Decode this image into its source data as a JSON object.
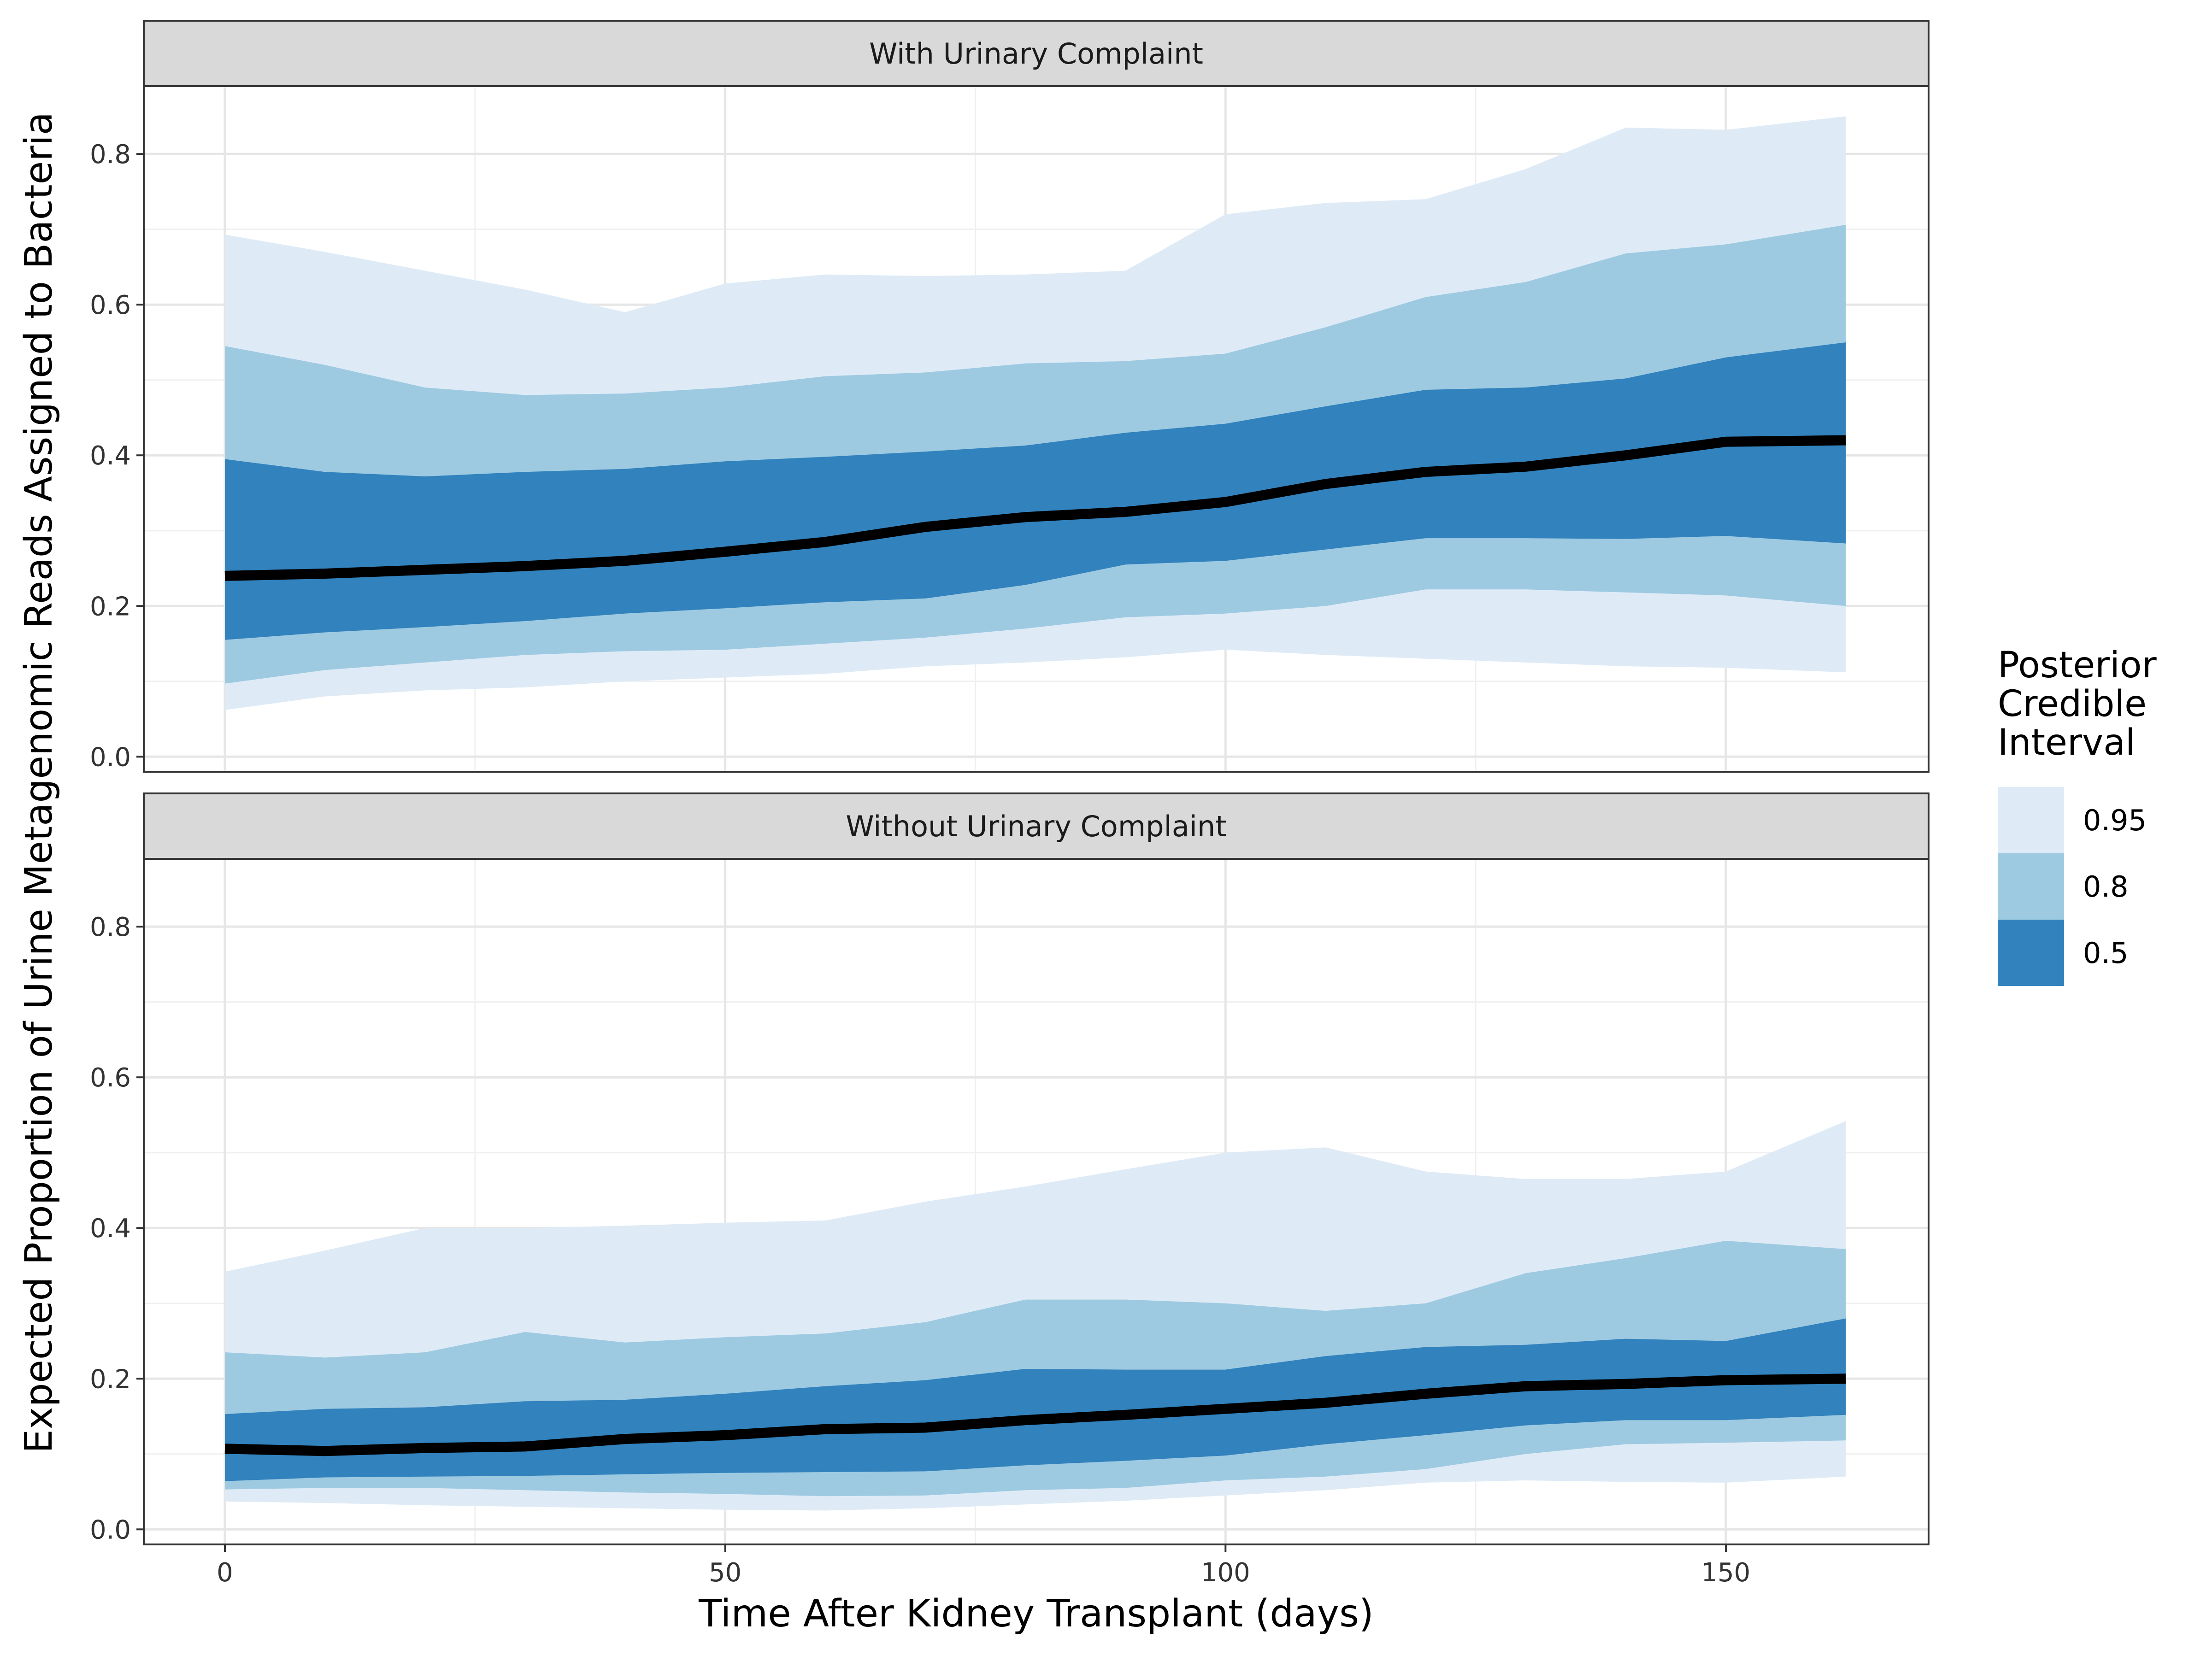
{
  "chart_data": {
    "type": "area",
    "xlabel": "Time After Kidney Transplant (days)",
    "ylabel": "Expected Proportion of Urine Metagenomic Reads Assigned to Bacteria",
    "xlim": [
      -16,
      340
    ],
    "ylim": [
      -0.02,
      0.89
    ],
    "x_ticks": [
      0,
      50,
      100,
      150
    ],
    "y_ticks": [
      0.0,
      0.2,
      0.4,
      0.6,
      0.8
    ],
    "x_tick_labels": [
      "0",
      "50",
      "100",
      "150"
    ],
    "y_tick_labels": [
      "0.0",
      "0.2",
      "0.4",
      "0.6",
      "0.8"
    ],
    "grid": true,
    "legend": {
      "title": [
        "Posterior",
        "Credible",
        "Interval"
      ],
      "position": "right",
      "entries": [
        {
          "label": "0.95",
          "color": "#deebf7"
        },
        {
          "label": "0.8",
          "color": "#9ecae1"
        },
        {
          "label": "0.5",
          "color": "#3182bd"
        }
      ]
    },
    "median_color": "#000000",
    "panels": [
      {
        "strip": "With Urinary Complaint",
        "x": [
          0,
          10,
          20,
          30,
          40,
          50,
          60,
          70,
          80,
          90,
          100,
          110,
          120,
          130,
          140,
          150,
          162
        ],
        "median": [
          0.24,
          0.243,
          0.248,
          0.253,
          0.26,
          0.272,
          0.285,
          0.305,
          0.318,
          0.325,
          0.338,
          0.362,
          0.378,
          0.385,
          0.4,
          0.418,
          0.42
        ],
        "bands": [
          {
            "level": "0.95",
            "lower": [
              0.062,
              0.08,
              0.088,
              0.092,
              0.1,
              0.105,
              0.11,
              0.12,
              0.125,
              0.132,
              0.142,
              0.135,
              0.13,
              0.125,
              0.12,
              0.118,
              0.112
            ],
            "upper": [
              0.693,
              0.67,
              0.645,
              0.62,
              0.59,
              0.628,
              0.64,
              0.638,
              0.64,
              0.645,
              0.72,
              0.735,
              0.74,
              0.78,
              0.835,
              0.832,
              0.85
            ]
          },
          {
            "level": "0.8",
            "lower": [
              0.097,
              0.115,
              0.125,
              0.135,
              0.14,
              0.142,
              0.15,
              0.158,
              0.17,
              0.185,
              0.19,
              0.2,
              0.222,
              0.222,
              0.218,
              0.214,
              0.2
            ],
            "upper": [
              0.545,
              0.52,
              0.49,
              0.48,
              0.482,
              0.49,
              0.505,
              0.51,
              0.522,
              0.525,
              0.535,
              0.57,
              0.61,
              0.63,
              0.668,
              0.68,
              0.706
            ]
          },
          {
            "level": "0.5",
            "lower": [
              0.155,
              0.165,
              0.172,
              0.18,
              0.19,
              0.197,
              0.205,
              0.21,
              0.228,
              0.255,
              0.26,
              0.275,
              0.29,
              0.29,
              0.289,
              0.293,
              0.283
            ]
          },
          {
            "level": "0.5-upper-placeholder"
          }
        ],
        "upper50": [
          0.395,
          0.378,
          0.372,
          0.378,
          0.382,
          0.392,
          0.398,
          0.405,
          0.413,
          0.43,
          0.442,
          0.465,
          0.487,
          0.49,
          0.502,
          0.53,
          0.55
        ]
      },
      {
        "strip": "Without Urinary Complaint",
        "x": [
          0,
          10,
          20,
          30,
          40,
          50,
          60,
          70,
          80,
          90,
          100,
          110,
          120,
          130,
          140,
          150,
          162
        ],
        "median": [
          0.107,
          0.104,
          0.108,
          0.11,
          0.12,
          0.125,
          0.133,
          0.135,
          0.145,
          0.152,
          0.16,
          0.168,
          0.18,
          0.19,
          0.193,
          0.198,
          0.2
        ],
        "bands": [
          {
            "level": "0.95",
            "lower": [
              0.037,
              0.035,
              0.032,
              0.03,
              0.028,
              0.026,
              0.025,
              0.028,
              0.033,
              0.038,
              0.045,
              0.052,
              0.062,
              0.065,
              0.063,
              0.062,
              0.07
            ],
            "upper": [
              0.342,
              0.37,
              0.4,
              0.4,
              0.403,
              0.407,
              0.41,
              0.435,
              0.455,
              0.478,
              0.5,
              0.507,
              0.475,
              0.465,
              0.465,
              0.475,
              0.542
            ]
          },
          {
            "level": "0.8",
            "lower": [
              0.053,
              0.055,
              0.055,
              0.052,
              0.049,
              0.047,
              0.044,
              0.045,
              0.052,
              0.055,
              0.065,
              0.07,
              0.08,
              0.1,
              0.113,
              0.115,
              0.118
            ]
          },
          {
            "level": "0.5",
            "lower": [
              0.064,
              0.069,
              0.07,
              0.071,
              0.073,
              0.075,
              0.076,
              0.077,
              0.085,
              0.091,
              0.098,
              0.113,
              0.125,
              0.138,
              0.145,
              0.145,
              0.152
            ]
          },
          {
            "level": "0.5-upper-placeholder"
          }
        ],
        "upper80": [
          0.235,
          0.228,
          0.235,
          0.262,
          0.248,
          0.255,
          0.26,
          0.275,
          0.305,
          0.305,
          0.3,
          0.29,
          0.3,
          0.34,
          0.36,
          0.383,
          0.372
        ],
        "upper50": [
          0.153,
          0.16,
          0.162,
          0.17,
          0.172,
          0.18,
          0.19,
          0.198,
          0.213,
          0.212,
          0.212,
          0.23,
          0.242,
          0.245,
          0.253,
          0.25,
          0.28
        ]
      }
    ]
  }
}
